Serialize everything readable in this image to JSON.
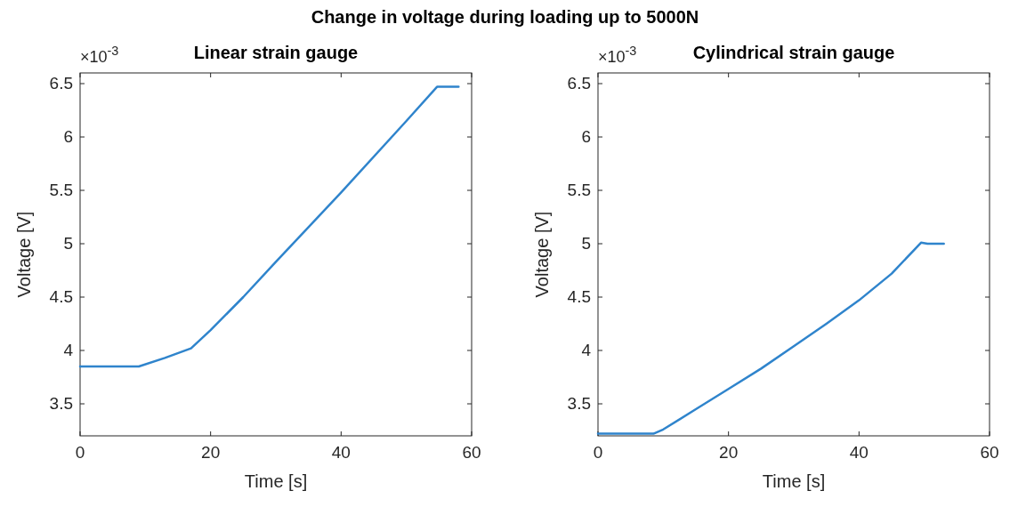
{
  "chart_data": [
    {
      "type": "line",
      "title": "Linear strain gauge",
      "xlabel": "Time [s]",
      "ylabel": "Voltage [V]",
      "annotations": [
        "Change in voltage during loading up to 5000N",
        "×10$^{-3}$"
      ],
      "series": [
        {
          "color": "#2f84cc",
          "x": [
            0,
            9,
            13,
            17,
            20,
            25,
            30,
            40,
            50,
            54.7,
            58
          ],
          "values": [
            3.85,
            3.85,
            3.93,
            4.02,
            4.19,
            4.5,
            4.83,
            5.48,
            6.15,
            6.47,
            6.47
          ]
        }
      ],
      "xlim": [
        0,
        60
      ],
      "xticks": [
        0,
        20,
        40,
        60
      ],
      "ylim": [
        3.2,
        6.6
      ],
      "yticks": [
        3.5,
        4,
        4.5,
        5,
        5.5,
        6,
        6.5
      ],
      "grid": false,
      "marker": "none",
      "line_style": "solid"
    },
    {
      "type": "line",
      "title": "Cylindrical strain gauge",
      "xlabel": "Time [s]",
      "ylabel": "Voltage [V]",
      "annotations": [
        "×10$^{-3}$"
      ],
      "series": [
        {
          "color": "#2f84cc",
          "x": [
            0,
            8.5,
            10,
            15,
            20,
            25,
            30,
            35,
            40,
            45,
            49.5,
            50.5,
            53
          ],
          "values": [
            3.22,
            3.22,
            3.26,
            3.45,
            3.64,
            3.83,
            4.04,
            4.25,
            4.47,
            4.72,
            5.01,
            5.0,
            5.0
          ]
        }
      ],
      "xlim": [
        0,
        60
      ],
      "xticks": [
        0,
        20,
        40,
        60
      ],
      "ylim": [
        3.2,
        6.6
      ],
      "yticks": [
        3.5,
        4,
        4.5,
        5,
        5.5,
        6,
        6.5
      ],
      "grid": false,
      "marker": "none",
      "line_style": "solid"
    }
  ]
}
